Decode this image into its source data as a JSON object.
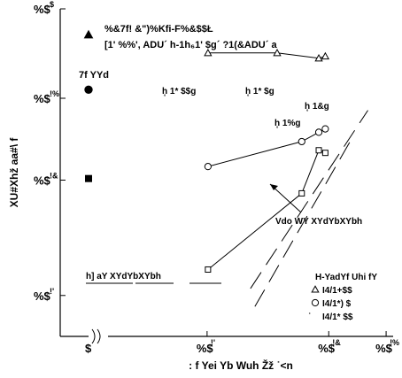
{
  "chart_data": {
    "type": "scatter",
    "title_lines": [
      "%&7f! &\")%Kfi-F%&$$Ł",
      "[1' %%', ADU´ h-1h₆1' $g´ ?1(&ADU´ a"
    ],
    "xlabel": ": f Yei Yb Wuh Žž ˙<n",
    "ylabel": "XU#Xhž aa#\\ f",
    "log_x": true,
    "log_y": true,
    "xlim": [
      3e-05,
      1.2e-06
    ],
    "ylim": [
      0.0003,
      0.003
    ],
    "x_ticks": [
      {
        "value": 1e-05,
        "base": "%$",
        "exp": "!'"
      },
      {
        "value": 2.5e-06,
        "base": "%$",
        "exp": "!&"
      },
      {
        "value": 1.3e-06,
        "base": "%$",
        "exp": "!%"
      }
    ],
    "y_ticks": [
      {
        "value": 0.003,
        "base": "%$",
        "exp": "$"
      },
      {
        "value": 0.0016,
        "base": "%$",
        "exp": "!%"
      },
      {
        "value": 0.0009,
        "base": "%$",
        "exp": "!&"
      },
      {
        "value": 0.0004,
        "base": "%$",
        "exp": "!'"
      }
    ],
    "x_zero_label": "$",
    "break_left_label": "7f YYd",
    "series": [
      {
        "name": "",
        "marker": "triangle",
        "points": [
          [
            9.9e-06,
            0.0022
          ],
          [
            4.5e-06,
            0.0022
          ],
          [
            2.8e-06,
            0.00212
          ],
          [
            2.6e-06,
            0.00215
          ]
        ]
      },
      {
        "name": "",
        "marker": "circle",
        "points": [
          [
            9.9e-06,
            0.00099
          ],
          [
            3.4e-06,
            0.00118
          ],
          [
            2.8e-06,
            0.00126
          ],
          [
            2.6e-06,
            0.00129
          ]
        ]
      },
      {
        "name": "",
        "marker": "square",
        "points": [
          [
            9.9e-06,
            0.00048
          ],
          [
            3.4e-06,
            0.00082
          ],
          [
            2.8e-06,
            0.00111
          ],
          [
            2.6e-06,
            0.00109
          ]
        ]
      }
    ],
    "zero_points": [
      {
        "marker": "triangle",
        "y": 0.0025
      },
      {
        "marker": "circle",
        "y": 0.0017
      },
      {
        "marker": "square",
        "y": 0.00091
      }
    ],
    "guide_lines": [
      {
        "name": "",
        "style": "dashed",
        "points": [
          [
            5.8e-06,
            0.00037
          ],
          [
            1.9e-06,
            0.00122
          ]
        ]
      },
      {
        "name": "",
        "style": "dashed",
        "points": [
          [
            6.1e-06,
            0.00042
          ],
          [
            1.6e-06,
            0.00147
          ]
        ]
      }
    ],
    "annotations": {
      "tri_labels": [
        "h̥ 1* $$g",
        "h̥ 1* $g",
        "h̥ 1&g",
        "h̥ 1%g"
      ],
      "theory_label": "Vdo WY XYdYbXYbh",
      "left_label": "h] aY XYdYbXYbh",
      "legend_title": "H-YadYf Uhi fY",
      "legend_items": [
        "I4/1+$$",
        "I4/1*) $",
        "I4/1* $$"
      ],
      "legend_markers": [
        "triangle",
        "circle",
        "square"
      ]
    }
  }
}
